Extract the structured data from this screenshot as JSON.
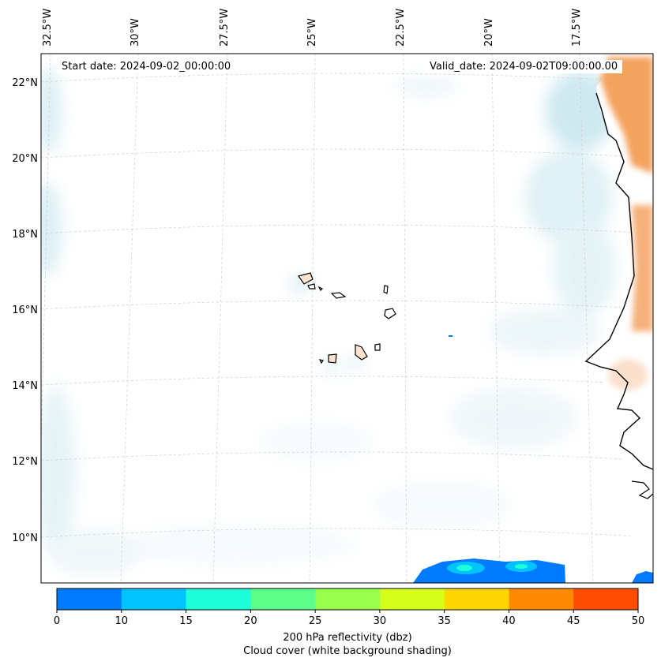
{
  "map": {
    "start_date_label": "Start date: 2024-09-02_00:00:00",
    "valid_date_label": "Valid_date: 2024-09-02T09:00:00.00",
    "longitude_labels": [
      "32.5°W",
      "30°W",
      "27.5°W",
      "25°W",
      "22.5°W",
      "20°W",
      "17.5°W"
    ],
    "latitude_labels": [
      "22°N",
      "20°N",
      "18°N",
      "16°N",
      "14°N",
      "12°N",
      "10°N"
    ],
    "gridlines": "dashed",
    "land_color": "#f4a35e",
    "cloud_shading_color": "#bfe3ec"
  },
  "colorbar": {
    "ticks": [
      "0",
      "10",
      "15",
      "20",
      "25",
      "30",
      "35",
      "40",
      "45",
      "50"
    ],
    "colors": [
      "#007bff",
      "#00c3ff",
      "#1effd9",
      "#5bff8a",
      "#98ff4e",
      "#d6ff1b",
      "#ffd700",
      "#ff8a00",
      "#ff4d00"
    ],
    "label_line1": "200 hPa reflectivity (dbz)",
    "label_line2": "Cloud cover (white background shading)"
  }
}
